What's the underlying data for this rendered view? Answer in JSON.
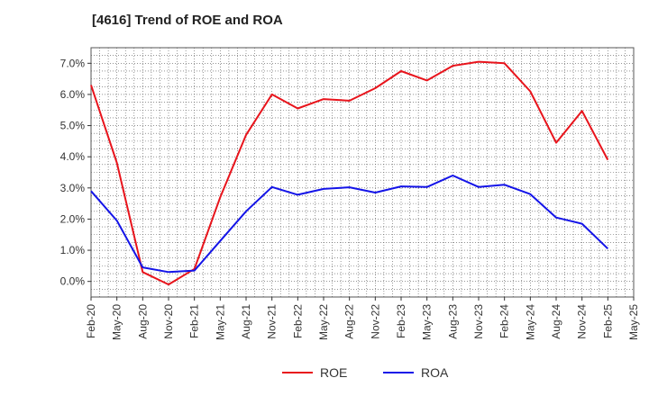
{
  "chart_data": {
    "type": "line",
    "title": "[4616]  Trend of ROE and ROA",
    "xlabel": "",
    "ylabel": "",
    "categories": [
      "Feb-20",
      "May-20",
      "Aug-20",
      "Nov-20",
      "Feb-21",
      "May-21",
      "Aug-21",
      "Nov-21",
      "Feb-22",
      "May-22",
      "Aug-22",
      "Nov-22",
      "Feb-23",
      "May-23",
      "Aug-23",
      "Nov-23",
      "Feb-24",
      "May-24",
      "Aug-24",
      "Nov-24",
      "Feb-25",
      "May-25"
    ],
    "ylim": [
      -0.5,
      7.5
    ],
    "yticks": [
      0.0,
      1.0,
      2.0,
      3.0,
      4.0,
      5.0,
      6.0,
      7.0
    ],
    "ytick_labels": [
      "0.0%",
      "1.0%",
      "2.0%",
      "3.0%",
      "4.0%",
      "5.0%",
      "6.0%",
      "7.0%"
    ],
    "grid": true,
    "legend_position": "bottom-center",
    "series": [
      {
        "name": "ROE",
        "color": "#e8141c",
        "values": [
          6.3,
          3.8,
          0.3,
          -0.1,
          0.4,
          2.7,
          4.7,
          6.0,
          5.55,
          5.85,
          5.8,
          6.2,
          6.75,
          6.45,
          6.92,
          7.05,
          7.0,
          6.1,
          4.45,
          5.47,
          3.9,
          null
        ]
      },
      {
        "name": "ROA",
        "color": "#1414e8",
        "values": [
          2.9,
          1.95,
          0.45,
          0.3,
          0.35,
          1.3,
          2.25,
          3.03,
          2.78,
          2.97,
          3.02,
          2.85,
          3.05,
          3.03,
          3.4,
          3.03,
          3.1,
          2.8,
          2.05,
          1.85,
          1.05,
          null
        ]
      }
    ]
  }
}
